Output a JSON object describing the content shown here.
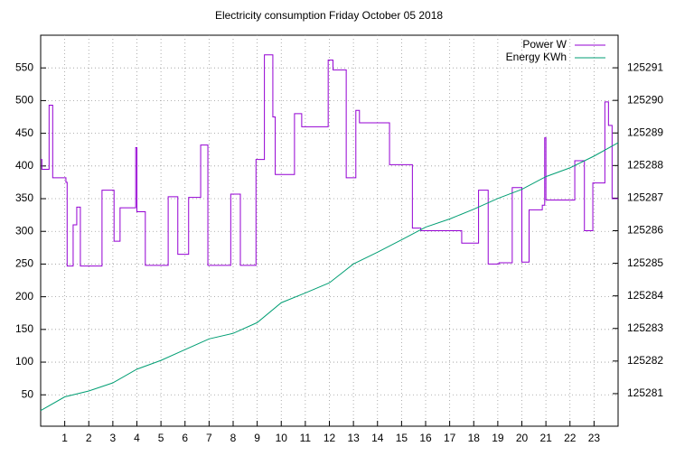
{
  "chart_data": {
    "type": "line",
    "title": "Electricity consumption Friday October 05 2018",
    "xlim": [
      0,
      24
    ],
    "xticks": [
      1,
      2,
      3,
      4,
      5,
      6,
      7,
      8,
      9,
      10,
      11,
      12,
      13,
      14,
      15,
      16,
      17,
      18,
      19,
      20,
      21,
      22,
      23
    ],
    "ylim": [
      2,
      600
    ],
    "yticks": [
      50,
      100,
      150,
      200,
      250,
      300,
      350,
      400,
      450,
      500,
      550
    ],
    "y2lim": [
      125280,
      125292
    ],
    "y2ticks": [
      125281,
      125282,
      125283,
      125284,
      125285,
      125286,
      125287,
      125288,
      125289,
      125290,
      125291
    ],
    "grid": true,
    "legend": "top-right",
    "series": [
      {
        "name": "Power W",
        "color": "#9400d3",
        "x": [
          0,
          0.05,
          0.05,
          0.35,
          0.35,
          0.5,
          0.5,
          1.05,
          1.05,
          1.1,
          1.1,
          1.35,
          1.35,
          1.5,
          1.5,
          1.65,
          1.65,
          2.55,
          2.55,
          3.05,
          3.05,
          3.3,
          3.3,
          3.95,
          3.95,
          4.0,
          4.0,
          4.35,
          4.35,
          5.3,
          5.3,
          5.7,
          5.7,
          6.15,
          6.15,
          6.65,
          6.65,
          6.95,
          6.95,
          7.9,
          7.9,
          8.3,
          8.3,
          8.95,
          8.95,
          9.3,
          9.3,
          9.65,
          9.65,
          9.75,
          9.75,
          10.55,
          10.55,
          10.85,
          10.85,
          11.95,
          11.95,
          12.15,
          12.15,
          12.7,
          12.7,
          13.1,
          13.1,
          13.25,
          13.25,
          14.5,
          14.5,
          15.45,
          15.45,
          15.8,
          15.8,
          17.5,
          17.5,
          18.2,
          18.2,
          18.6,
          18.6,
          19.05,
          19.05,
          19.6,
          19.6,
          20.0,
          20.0,
          20.3,
          20.3,
          20.85,
          20.85,
          20.95,
          20.95,
          21.0,
          21.0,
          22.2,
          22.2,
          22.6,
          22.6,
          22.95,
          22.95,
          23.45,
          23.45,
          23.6,
          23.6,
          23.75,
          23.75,
          24
        ],
        "values": [
          410,
          410,
          395,
          395,
          493,
          493,
          382,
          382,
          375,
          375,
          247,
          247,
          310,
          310,
          337,
          337,
          247,
          247,
          363,
          363,
          285,
          285,
          336,
          336,
          428,
          428,
          330,
          330,
          248,
          248,
          353,
          353,
          265,
          265,
          352,
          352,
          432,
          432,
          248,
          248,
          357,
          357,
          248,
          248,
          410,
          410,
          570,
          570,
          475,
          475,
          387,
          387,
          480,
          480,
          460,
          460,
          562,
          562,
          547,
          547,
          382,
          382,
          485,
          485,
          466,
          466,
          402,
          402,
          305,
          305,
          301,
          301,
          282,
          282,
          363,
          363,
          250,
          250,
          252,
          252,
          367,
          367,
          253,
          253,
          333,
          333,
          340,
          340,
          443,
          443,
          348,
          348,
          408,
          408,
          301,
          301,
          374,
          374,
          498,
          498,
          462,
          462,
          350,
          350
        ]
      },
      {
        "name": "Energy KWh",
        "color": "#009e73",
        "axis": "y2",
        "x": [
          0,
          1,
          2,
          3,
          4,
          5,
          6,
          7,
          8,
          9,
          10,
          11,
          12,
          13,
          14,
          15,
          16,
          17,
          18,
          19,
          20,
          21,
          22,
          23,
          24
        ],
        "values": [
          125280.48,
          125280.9,
          125281.08,
          125281.33,
          125281.75,
          125282.02,
          125282.35,
          125282.68,
          125282.85,
          125283.18,
          125283.79,
          125284.09,
          125284.4,
          125284.98,
          125285.34,
          125285.72,
          125286.11,
          125286.36,
          125286.66,
          125286.99,
          125287.27,
          125287.66,
          125287.93,
          125288.29,
          125288.7
        ]
      }
    ]
  }
}
